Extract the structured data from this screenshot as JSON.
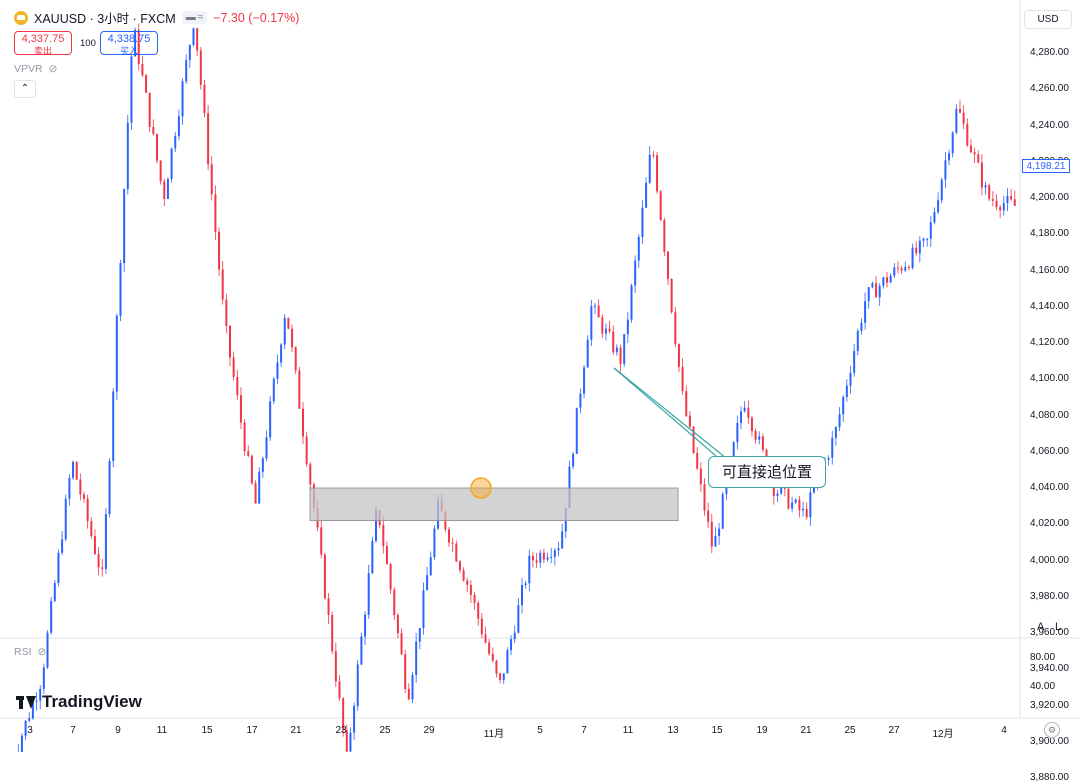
{
  "header": {
    "symbol": "XAUUSD · 3小时 · FXCM",
    "change": "−7.30 (−0.17%)",
    "sell": {
      "price": "4,337.75",
      "label": "卖出"
    },
    "spread": "100",
    "buy": {
      "price": "4,338.75",
      "label": "买入"
    },
    "indicator_vpvr": "VPVR",
    "indicator_rsi": "RSI"
  },
  "currency": "USD",
  "current_price": "4,198.21",
  "price_axis": [
    "4,280.00",
    "4,260.00",
    "4,240.00",
    "4,220.00",
    "4,200.00",
    "4,180.00",
    "4,160.00",
    "4,140.00",
    "4,120.00",
    "4,100.00",
    "4,080.00",
    "4,060.00",
    "4,040.00",
    "4,020.00",
    "4,000.00",
    "3,980.00",
    "3,960.00",
    "3,940.00",
    "3,920.00",
    "3,900.00",
    "3,880.00"
  ],
  "rsi_axis": [
    "80.00",
    "40.00"
  ],
  "scale_buttons": {
    "auto": "A",
    "log": "L"
  },
  "time_axis": [
    "3",
    "7",
    "9",
    "11",
    "15",
    "17",
    "21",
    "23",
    "25",
    "29",
    "11月",
    "5",
    "7",
    "11",
    "13",
    "15",
    "19",
    "21",
    "25",
    "27",
    "12月",
    "4"
  ],
  "annotation": "可直接追位置",
  "brand": "TradingView",
  "colors": {
    "up": "#2962ff",
    "down": "#f23645",
    "zone": "#c4c4c4",
    "callout": "#3aa5a5",
    "marker": "#f5a623"
  },
  "chart_data": {
    "type": "candlestick",
    "zone": {
      "low": 4022,
      "high": 4040
    },
    "marker_price": 4040,
    "segments": [
      {
        "price_start": 3887,
        "price_end": 3935
      },
      {
        "price_start": 3935,
        "price_end": 4055
      },
      {
        "price_start": 4055,
        "price_end": 3990
      },
      {
        "price_start": 3990,
        "price_end": 4295
      },
      {
        "price_start": 4295,
        "price_end": 4200
      },
      {
        "price_start": 4200,
        "price_end": 4300
      },
      {
        "price_start": 4300,
        "price_end": 4130
      },
      {
        "price_start": 4130,
        "price_end": 4030
      },
      {
        "price_start": 4030,
        "price_end": 4140
      },
      {
        "price_start": 4140,
        "price_end": 4020
      },
      {
        "price_start": 4020,
        "price_end": 3890
      },
      {
        "price_start": 3890,
        "price_end": 4030
      },
      {
        "price_start": 4030,
        "price_end": 3925
      },
      {
        "price_start": 3925,
        "price_end": 4030
      },
      {
        "price_start": 4030,
        "price_end": 3985
      },
      {
        "price_start": 3985,
        "price_end": 3930
      },
      {
        "price_start": 3930,
        "price_end": 4000
      },
      {
        "price_start": 4000,
        "price_end": 4010
      },
      {
        "price_start": 4010,
        "price_end": 4140
      },
      {
        "price_start": 4140,
        "price_end": 4110
      },
      {
        "price_start": 4110,
        "price_end": 4230
      },
      {
        "price_start": 4230,
        "price_end": 4090
      },
      {
        "price_start": 4090,
        "price_end": 4005
      },
      {
        "price_start": 4005,
        "price_end": 4090
      },
      {
        "price_start": 4090,
        "price_end": 4040
      },
      {
        "price_start": 4040,
        "price_end": 4025
      },
      {
        "price_start": 4025,
        "price_end": 4070
      },
      {
        "price_start": 4070,
        "price_end": 4145
      },
      {
        "price_start": 4145,
        "price_end": 4160
      },
      {
        "price_start": 4160,
        "price_end": 4175
      },
      {
        "price_start": 4175,
        "price_end": 4250
      },
      {
        "price_start": 4250,
        "price_end": 4200
      },
      {
        "price_start": 4200,
        "price_end": 4195
      }
    ]
  }
}
